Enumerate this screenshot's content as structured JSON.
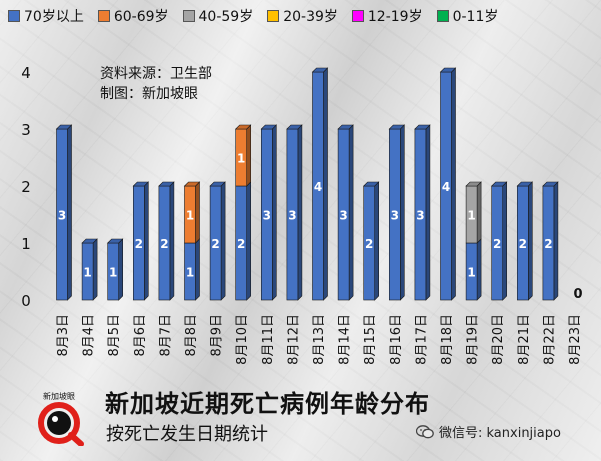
{
  "legend": [
    {
      "label": "70岁以上",
      "color": "#4472c4"
    },
    {
      "label": "60-69岁",
      "color": "#ed7d31"
    },
    {
      "label": "40-59岁",
      "color": "#a5a5a5"
    },
    {
      "label": "20-39岁",
      "color": "#ffc000"
    },
    {
      "label": "12-19岁",
      "color": "#ff00ff"
    },
    {
      "label": "0-11岁",
      "color": "#00b050"
    }
  ],
  "source_lines": [
    "资料来源：卫生部",
    "制图：新加坡眼"
  ],
  "logo_text": "新加坡眼",
  "title": "新加坡近期死亡病例年龄分布",
  "subtitle": "按死亡发生日期统计",
  "wechat_label": "微信号: kanxinjiapo",
  "chart_data": {
    "type": "bar",
    "stacked": true,
    "title": "新加坡近期死亡病例年龄分布",
    "subtitle": "按死亡发生日期统计",
    "xlabel": "",
    "ylabel": "",
    "ylim": [
      0,
      4
    ],
    "yticks": [
      0,
      1,
      2,
      3,
      4
    ],
    "grid": false,
    "legend_position": "top",
    "categories": [
      "8月3日",
      "8月4日",
      "8月5日",
      "8月6日",
      "8月7日",
      "8月8日",
      "8月9日",
      "8月10日",
      "8月11日",
      "8月12日",
      "8月13日",
      "8月14日",
      "8月15日",
      "8月16日",
      "8月17日",
      "8月18日",
      "8月19日",
      "8月20日",
      "8月21日",
      "8月22日",
      "8月23日"
    ],
    "series": [
      {
        "name": "70岁以上",
        "color": "#4472c4",
        "values": [
          3,
          1,
          1,
          2,
          2,
          1,
          2,
          2,
          3,
          3,
          4,
          3,
          2,
          3,
          3,
          4,
          1,
          2,
          2,
          2,
          0
        ]
      },
      {
        "name": "60-69岁",
        "color": "#ed7d31",
        "values": [
          0,
          0,
          0,
          0,
          0,
          1,
          0,
          1,
          0,
          0,
          0,
          0,
          0,
          0,
          0,
          0,
          0,
          0,
          0,
          0,
          0
        ]
      },
      {
        "name": "40-59岁",
        "color": "#a5a5a5",
        "values": [
          0,
          0,
          0,
          0,
          0,
          0,
          0,
          0,
          0,
          0,
          0,
          0,
          0,
          0,
          0,
          0,
          1,
          0,
          0,
          0,
          0
        ]
      },
      {
        "name": "20-39岁",
        "color": "#ffc000",
        "values": [
          0,
          0,
          0,
          0,
          0,
          0,
          0,
          0,
          0,
          0,
          0,
          0,
          0,
          0,
          0,
          0,
          0,
          0,
          0,
          0,
          0
        ]
      },
      {
        "name": "12-19岁",
        "color": "#ff00ff",
        "values": [
          0,
          0,
          0,
          0,
          0,
          0,
          0,
          0,
          0,
          0,
          0,
          0,
          0,
          0,
          0,
          0,
          0,
          0,
          0,
          0,
          0
        ]
      },
      {
        "name": "0-11岁",
        "color": "#00b050",
        "values": [
          0,
          0,
          0,
          0,
          0,
          0,
          0,
          0,
          0,
          0,
          0,
          0,
          0,
          0,
          0,
          0,
          0,
          0,
          0,
          0,
          0
        ]
      }
    ],
    "zero_labels": [
      "0"
    ]
  }
}
